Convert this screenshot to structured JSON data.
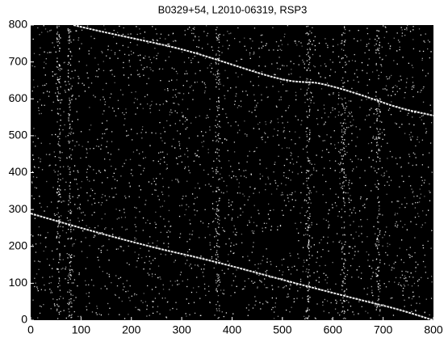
{
  "chart_data": {
    "type": "image",
    "title": "B0329+54, L2010-06319, RSP3",
    "xlim": [
      0,
      800
    ],
    "xticks": [
      0,
      100,
      200,
      300,
      400,
      500,
      600,
      700,
      800
    ],
    "ylim": [
      0,
      800
    ],
    "yticks": [
      0,
      100,
      200,
      300,
      400,
      500,
      600,
      700,
      800
    ]
  }
}
